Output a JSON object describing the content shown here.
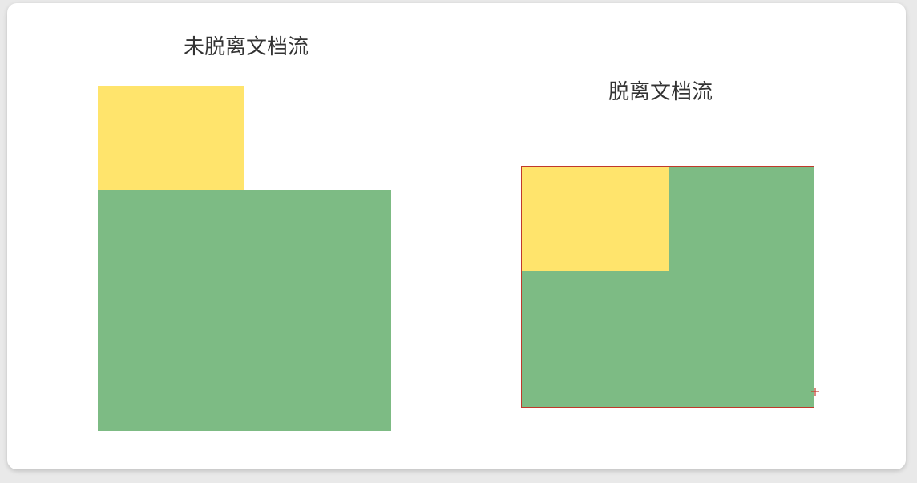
{
  "left_demo": {
    "title": "未脱离文档流"
  },
  "right_demo": {
    "title": "脱离文档流"
  },
  "colors": {
    "green": "#7dbb84",
    "yellow": "#ffe46c",
    "border": "#c0392b",
    "card": "#ffffff"
  }
}
